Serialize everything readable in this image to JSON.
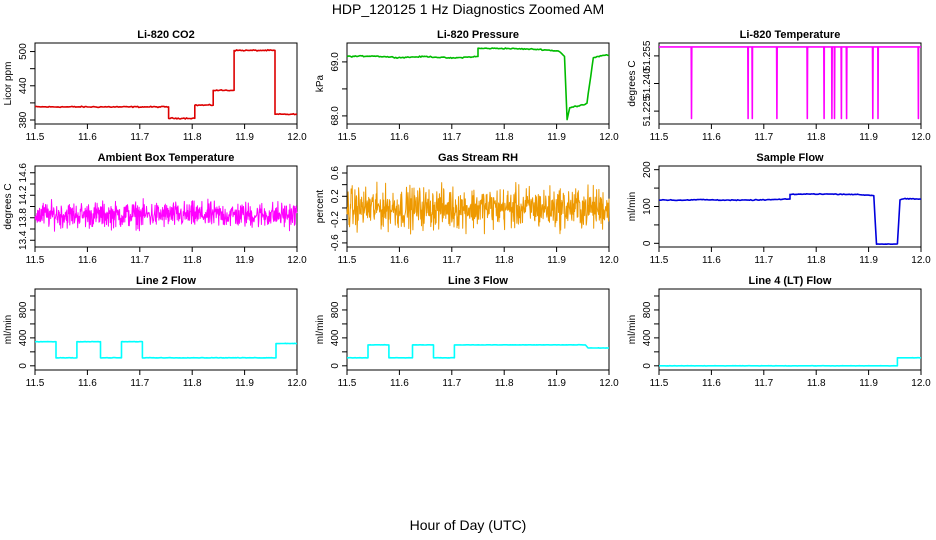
{
  "title": "HDP_120125  1 Hz Diagnostics Zoomed AM",
  "xlabel": "Hour of Day (UTC)",
  "chart_data": [
    {
      "type": "line",
      "title": "Li-820 CO2",
      "ylabel": "Licor ppm",
      "color": "#dd0000",
      "xlim": [
        11.5,
        12.0
      ],
      "xticks": [
        "11.5",
        "11.6",
        "11.7",
        "11.8",
        "11.9",
        "12.0"
      ],
      "ylim": [
        373,
        515
      ],
      "yticks": [
        "380",
        "440",
        "500"
      ],
      "yticks_minor": [
        "410",
        "470"
      ],
      "x": [
        11.5,
        11.755,
        11.755,
        11.805,
        11.805,
        11.84,
        11.84,
        11.88,
        11.88,
        11.958,
        11.958,
        12.0
      ],
      "y": [
        403,
        403,
        383,
        383,
        406,
        406,
        432,
        432,
        502,
        502,
        390,
        390
      ],
      "noise": 1.5
    },
    {
      "type": "line",
      "title": "Li-820 Pressure",
      "ylabel": "kPa",
      "color": "#00bb00",
      "xlim": [
        11.5,
        12.0
      ],
      "xticks": [
        "11.5",
        "11.6",
        "11.7",
        "11.8",
        "11.9",
        "12.0"
      ],
      "ylim": [
        67.85,
        69.35
      ],
      "yticks": [
        "68.0",
        "69.0"
      ],
      "yticks_minor": [
        "68.5"
      ],
      "x": [
        11.5,
        11.55,
        11.6,
        11.65,
        11.7,
        11.75,
        11.75,
        11.8,
        11.87,
        11.905,
        11.915,
        11.92,
        11.925,
        11.955,
        11.958,
        11.97,
        11.99,
        12.0
      ],
      "y": [
        69.1,
        69.11,
        69.08,
        69.1,
        69.07,
        69.1,
        69.25,
        69.25,
        69.23,
        69.2,
        69.1,
        67.93,
        68.15,
        68.22,
        68.24,
        69.08,
        69.12,
        69.12
      ],
      "noise": 0.015
    },
    {
      "type": "line",
      "title": "Li-820 Temperature",
      "ylabel": "degrees C",
      "color": "#ff00ff",
      "xlim": [
        11.5,
        12.0
      ],
      "xticks": [
        "11.5",
        "11.6",
        "11.7",
        "11.8",
        "11.9",
        "12.0"
      ],
      "ylim": [
        51.218,
        51.262
      ],
      "yticks": [
        "51.225",
        "51.240",
        "51.255"
      ],
      "yticks_minor": [],
      "baseline": 51.2599,
      "dips": [
        11.562,
        11.67,
        11.678,
        11.725,
        11.783,
        11.815,
        11.83,
        11.835,
        11.848,
        11.858,
        11.908,
        11.918,
        11.995
      ],
      "dip_value": 51.221
    },
    {
      "type": "line",
      "title": "Ambient Box Temperature",
      "ylabel": "degrees C",
      "color": "#ff00ff",
      "xlim": [
        11.5,
        12.0
      ],
      "xticks": [
        "11.5",
        "11.6",
        "11.7",
        "11.8",
        "11.9",
        "12.0"
      ],
      "ylim": [
        13.28,
        14.72
      ],
      "yticks": [
        "13.4",
        "13.8",
        "14.2",
        "14.6"
      ],
      "yticks_minor": [
        "13.6",
        "14.0",
        "14.4"
      ],
      "center": 13.85,
      "amplitude": 0.32,
      "spread": "dense"
    },
    {
      "type": "line",
      "title": "Gas Stream RH",
      "ylabel": "percent",
      "color": "#ee9900",
      "xlim": [
        11.5,
        12.0
      ],
      "xticks": [
        "11.5",
        "11.6",
        "11.7",
        "11.8",
        "11.9",
        "12.0"
      ],
      "ylim": [
        -0.67,
        0.72
      ],
      "yticks": [
        "-0.6",
        "-0.2",
        "0.2",
        "0.6"
      ],
      "yticks_minor": [
        "-0.4",
        "0.0",
        "0.4"
      ],
      "center": 0.0,
      "amplitude": 0.5,
      "spread": "dense"
    },
    {
      "type": "line",
      "title": "Sample Flow",
      "ylabel": "ml/min",
      "color": "#0000dd",
      "xlim": [
        11.5,
        12.0
      ],
      "xticks": [
        "11.5",
        "11.6",
        "11.7",
        "11.8",
        "11.9",
        "12.0"
      ],
      "ylim": [
        -10,
        210
      ],
      "yticks": [
        "0",
        "100",
        "200"
      ],
      "yticks_minor": [
        "50",
        "150"
      ],
      "x": [
        11.5,
        11.55,
        11.58,
        11.6,
        11.65,
        11.7,
        11.75,
        11.75,
        11.8,
        11.87,
        11.91,
        11.915,
        11.955,
        11.96,
        11.965,
        12.0
      ],
      "y": [
        118,
        117,
        119,
        118,
        117,
        118,
        120,
        133,
        134,
        133,
        130,
        -2,
        -2,
        117,
        121,
        120
      ],
      "noise": 1.5
    },
    {
      "type": "line",
      "title": "Line 2 Flow",
      "ylabel": "ml/min",
      "color": "#00ffff",
      "xlim": [
        11.5,
        12.0
      ],
      "xticks": [
        "11.5",
        "11.6",
        "11.7",
        "11.8",
        "11.9",
        "12.0"
      ],
      "ylim": [
        -60,
        1100
      ],
      "yticks": [
        "0",
        "400",
        "800"
      ],
      "yticks_minor": [
        "200",
        "600",
        "1000"
      ],
      "x": [
        11.5,
        11.54,
        11.54,
        11.58,
        11.58,
        11.625,
        11.625,
        11.665,
        11.665,
        11.705,
        11.705,
        11.96,
        11.96,
        12.0
      ],
      "y": [
        345,
        345,
        115,
        115,
        345,
        345,
        115,
        115,
        345,
        345,
        115,
        115,
        320,
        320
      ],
      "noise": 4
    },
    {
      "type": "line",
      "title": "Line 3 Flow",
      "ylabel": "ml/min",
      "color": "#00ffff",
      "xlim": [
        11.5,
        12.0
      ],
      "xticks": [
        "11.5",
        "11.6",
        "11.7",
        "11.8",
        "11.9",
        "12.0"
      ],
      "ylim": [
        -60,
        1100
      ],
      "yticks": [
        "0",
        "400",
        "800"
      ],
      "yticks_minor": [
        "200",
        "600",
        "1000"
      ],
      "x": [
        11.5,
        11.54,
        11.54,
        11.58,
        11.58,
        11.625,
        11.625,
        11.665,
        11.665,
        11.705,
        11.705,
        11.955,
        11.96,
        12.0
      ],
      "y": [
        115,
        115,
        300,
        300,
        115,
        115,
        300,
        300,
        115,
        115,
        300,
        300,
        255,
        255
      ],
      "noise": 3
    },
    {
      "type": "line",
      "title": "Line 4 (LT) Flow",
      "ylabel": "ml/min",
      "color": "#00ffff",
      "xlim": [
        11.5,
        12.0
      ],
      "xticks": [
        "11.5",
        "11.6",
        "11.7",
        "11.8",
        "11.9",
        "12.0"
      ],
      "ylim": [
        -60,
        1100
      ],
      "yticks": [
        "0",
        "400",
        "800"
      ],
      "yticks_minor": [
        "200",
        "600",
        "1000"
      ],
      "x": [
        11.5,
        11.955,
        11.955,
        12.0
      ],
      "y": [
        0,
        0,
        115,
        115
      ],
      "noise": 2
    }
  ]
}
